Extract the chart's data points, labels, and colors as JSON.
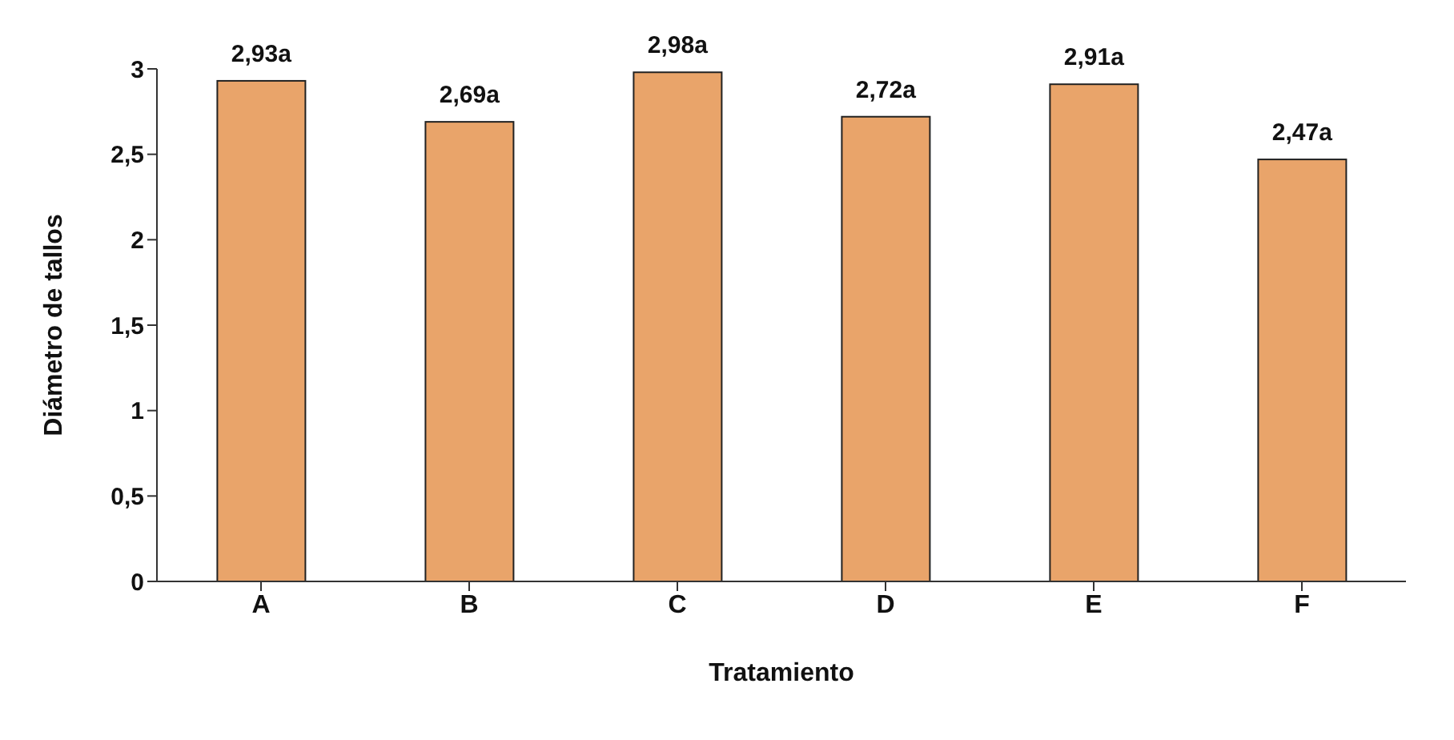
{
  "chart_data": {
    "type": "bar",
    "xlabel": "Tratamiento",
    "ylabel": "Diámetro de tallos",
    "categories": [
      "A",
      "B",
      "C",
      "D",
      "E",
      "F"
    ],
    "values": [
      2.93,
      2.69,
      2.98,
      2.72,
      2.91,
      2.47
    ],
    "value_labels": [
      "2,93a",
      "2,69a",
      "2,98a",
      "2,72a",
      "2,91a",
      "2,47a"
    ],
    "color": "#e9a46a",
    "ylim": [
      0,
      3
    ],
    "yticks": [
      0,
      {
        "value": 0.5,
        "label": "0,5"
      },
      1,
      {
        "value": 1.5,
        "label": "1,5"
      },
      2,
      {
        "value": 2.5,
        "label": "2,5"
      },
      3
    ],
    "grid": false,
    "legend": false
  }
}
